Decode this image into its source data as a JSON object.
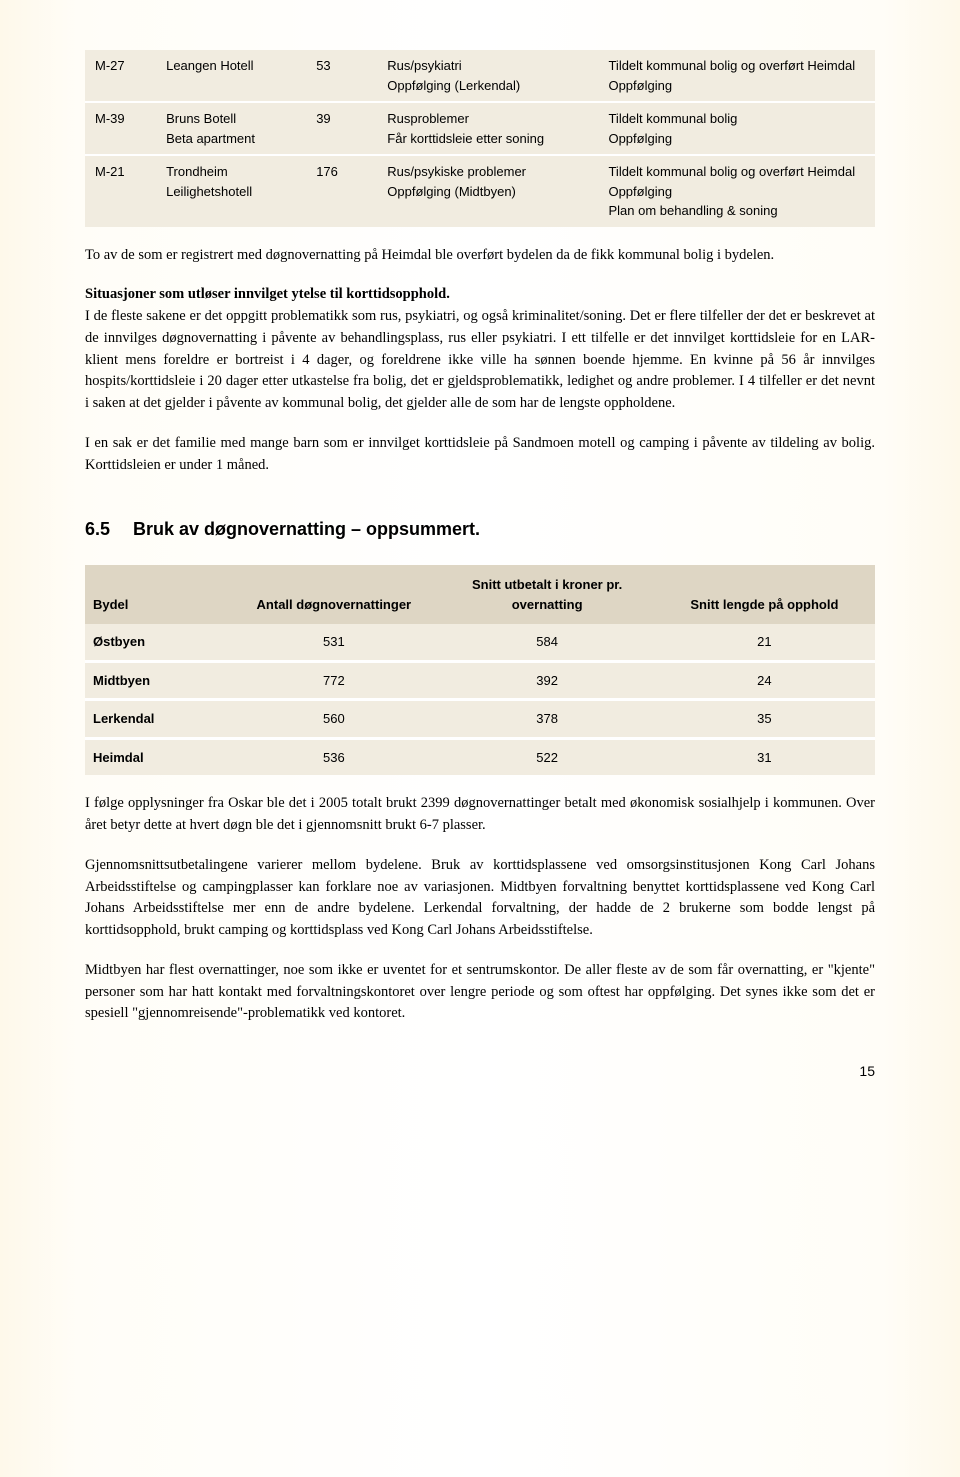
{
  "table1": {
    "rows": [
      {
        "id": "M-27",
        "place": "Leangen Hotell",
        "days": "53",
        "problems": "Rus/psykiatri\nOppfølging (Lerkendal)",
        "outcome": "Tildelt kommunal bolig og overført Heimdal\nOppfølging"
      },
      {
        "id": "M-39",
        "place": "Bruns Botell\nBeta apartment",
        "days": "39",
        "problems": "Rusproblemer\nFår korttidsleie etter soning",
        "outcome": "Tildelt kommunal bolig\nOppfølging"
      },
      {
        "id": "M-21",
        "place": "Trondheim Leilighetshotell",
        "days": "176",
        "problems": "Rus/psykiske problemer\nOppfølging (Midtbyen)",
        "outcome": "Tildelt kommunal bolig og overført Heimdal\nOppfølging\nPlan om behandling & soning"
      }
    ]
  },
  "para1": "To av de som er registrert med døgnovernatting på Heimdal ble overført bydelen da de fikk kommunal bolig i bydelen.",
  "para2_lead": "Situasjoner som utløser innvilget ytelse til korttidsopphold.",
  "para2_body": "I de fleste sakene er det oppgitt problematikk som rus, psykiatri, og også kriminalitet/soning. Det er flere tilfeller der det er beskrevet at de innvilges døgnovernatting i påvente av behandlingsplass, rus eller psykiatri. I ett tilfelle er det innvilget korttidsleie for en LAR-klient mens foreldre er bortreist i 4 dager, og foreldrene ikke ville ha sønnen boende hjemme. En kvinne på 56 år innvilges hospits/korttidsleie i 20 dager etter utkastelse fra bolig, det er gjeldsproblematikk, ledighet og andre problemer. I 4 tilfeller er det nevnt i saken at det gjelder i påvente av kommunal bolig, det gjelder alle de som har de lengste oppholdene.",
  "para3": "I en sak er det familie med mange barn som er innvilget korttidsleie på Sandmoen motell og camping i påvente av tildeling av bolig. Korttidsleien er under 1 måned.",
  "section_num": "6.5",
  "section_title": "Bruk av døgnovernatting – oppsummert.",
  "table2": {
    "headers": [
      "Bydel",
      "Antall døgnovernattinger",
      "Snitt utbetalt i kroner pr. overnatting",
      "Snitt lengde på opphold"
    ],
    "rows": [
      [
        "Østbyen",
        "531",
        "584",
        "21"
      ],
      [
        "Midtbyen",
        "772",
        "392",
        "24"
      ],
      [
        "Lerkendal",
        "560",
        "378",
        "35"
      ],
      [
        "Heimdal",
        "536",
        "522",
        "31"
      ]
    ]
  },
  "para4": "I følge opplysninger fra Oskar ble det i 2005 totalt brukt 2399 døgnovernattinger betalt med økonomisk sosialhjelp i kommunen. Over året betyr dette at hvert døgn ble det i gjennomsnitt brukt 6-7 plasser.",
  "para5": "Gjennomsnittsutbetalingene varierer mellom bydelene. Bruk av korttidsplassene ved omsorgsinstitusjonen Kong Carl Johans Arbeidsstiftelse og campingplasser kan forklare noe av variasjonen. Midtbyen forvaltning benyttet korttidsplassene ved Kong Carl Johans Arbeidsstiftelse mer enn de andre bydelene. Lerkendal forvaltning, der hadde de 2 brukerne som bodde lengst på korttidsopphold, brukt camping og korttidsplass ved Kong Carl Johans Arbeidsstiftelse.",
  "para6": "Midtbyen har flest overnattinger, noe som ikke er uventet for et sentrumskontor. De aller fleste av de som får overnatting, er \"kjente\" personer som har hatt kontakt med forvaltningskontoret over lengre periode og som oftest har oppfølging. Det synes ikke som det er spesiell \"gjennomreisende\"-problematikk ved kontoret.",
  "page_number": "15",
  "colors": {
    "table_header_bg": "#ded6c4",
    "table_cell_bg": "#f1ece0",
    "page_bg_edge": "#fef8ea",
    "page_bg_center": "#ffffff"
  }
}
